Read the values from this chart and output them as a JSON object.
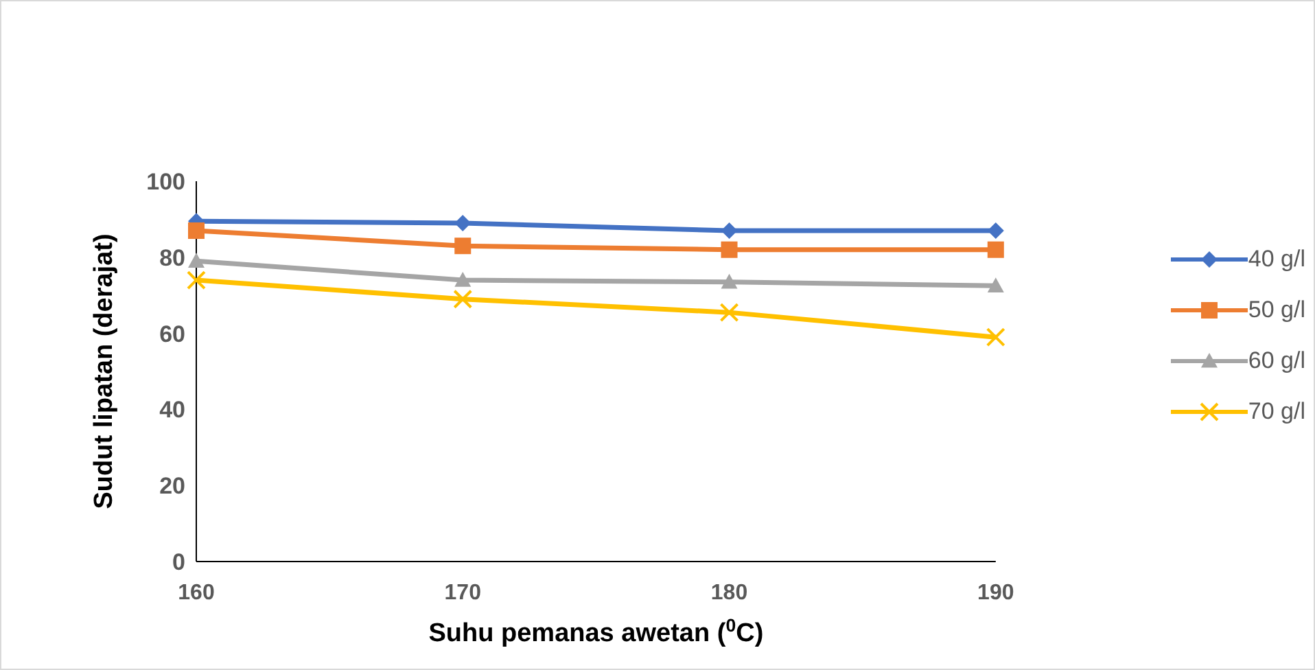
{
  "chart_data": {
    "type": "line",
    "xlabel": "Suhu pemanas awetan ($^{0}$C)",
    "ylabel": "Sudut lipatan (derajat)",
    "categories": [
      "160",
      "170",
      "180",
      "190"
    ],
    "series": [
      {
        "name": "40 g/l",
        "color": "#4472c4",
        "marker": "diamond",
        "values": [
          89.5,
          89,
          87,
          87
        ]
      },
      {
        "name": "50 g/l",
        "color": "#ed7d31",
        "marker": "square",
        "values": [
          87,
          83,
          82,
          82
        ]
      },
      {
        "name": "60 g/l",
        "color": "#a5a5a5",
        "marker": "triangle",
        "values": [
          79,
          74,
          73.5,
          72.5
        ]
      },
      {
        "name": "70 g/l",
        "color": "#ffc000",
        "marker": "cross",
        "values": [
          74,
          69,
          65.5,
          59
        ]
      }
    ],
    "ylim": [
      0,
      100
    ],
    "yticks": [
      0,
      20,
      40,
      60,
      80,
      100
    ],
    "grid": false,
    "legend": "right"
  }
}
